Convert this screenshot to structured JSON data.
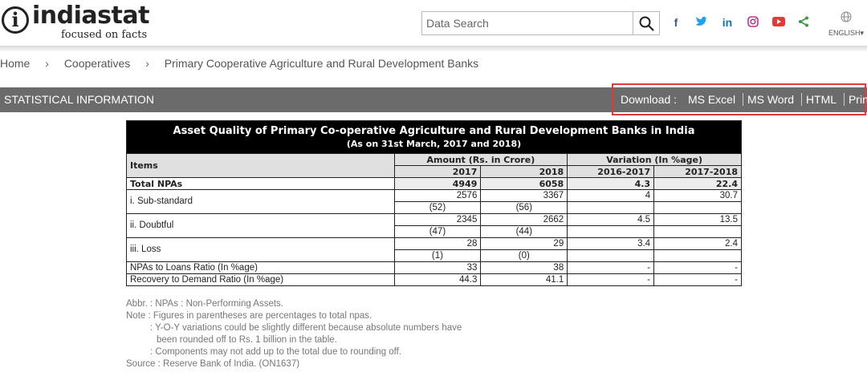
{
  "header": {
    "logo_mark": "i",
    "logo_name": "indiastat",
    "logo_tagline": "focused on facts",
    "search_placeholder": "Data Search",
    "social": [
      {
        "name": "facebook-icon",
        "glyph": "f",
        "color": "#3b5998"
      },
      {
        "name": "twitter-icon",
        "glyph": "🐦",
        "color": "#1da1f2"
      },
      {
        "name": "linkedin-icon",
        "glyph": "in",
        "color": "#0e76a8"
      },
      {
        "name": "instagram-icon",
        "glyph": "◎",
        "color": "#c13584"
      },
      {
        "name": "youtube-icon",
        "glyph": "▶",
        "color": "#e53935"
      },
      {
        "name": "share-icon",
        "glyph": "<",
        "color": "#3c9a3c"
      }
    ],
    "language_label": "ENGLISH▾"
  },
  "breadcrumb": [
    "Home",
    "Cooperatives",
    "Primary Cooperative Agriculture and Rural Development Banks"
  ],
  "infobar": {
    "title": "STATISTICAL INFORMATION",
    "download_label": "Download :",
    "links": [
      "MS Excel",
      "MS Word",
      "HTML",
      "Print"
    ]
  },
  "table": {
    "title": "Asset Quality of Primary Co-operative Agriculture and Rural Development Banks in India",
    "subtitle": "(As on 31st March, 2017 and 2018)",
    "col_items": "Items",
    "col_amount": "Amount (Rs. in Crore)",
    "col_variation": "Variation (In %age)",
    "sub_2017": "2017",
    "sub_2018": "2018",
    "sub_1617": "2016-2017",
    "sub_1718": "2017-2018",
    "total": {
      "label": "Total NPAs",
      "a2017": "4949",
      "a2018": "6058",
      "v1617": "4.3",
      "v1718": "22.4"
    },
    "sub_standard": {
      "label": "i. Sub-standard",
      "a2017": "2576",
      "a2018": "3367",
      "v1617": "4",
      "v1718": "30.7",
      "p2017": "(52)",
      "p2018": "(56)"
    },
    "doubtful": {
      "label": "ii. Doubtful",
      "a2017": "2345",
      "a2018": "2662",
      "v1617": "4.5",
      "v1718": "13.5",
      "p2017": "(47)",
      "p2018": "(44)"
    },
    "loss": {
      "label": "iii. Loss",
      "a2017": "28",
      "a2018": "29",
      "v1617": "3.4",
      "v1718": "2.4",
      "p2017": "(1)",
      "p2018": "(0)"
    },
    "npa_ratio": {
      "label": "NPAs to Loans Ratio (In %age)",
      "a2017": "33",
      "a2018": "38",
      "v1617": "-",
      "v1718": "-"
    },
    "recovery_ratio": {
      "label": "Recovery to Demand Ratio (In %age)",
      "a2017": "44.3",
      "a2018": "41.1",
      "v1617": "-",
      "v1718": "-"
    }
  },
  "notes": {
    "abbr": "Abbr. : NPAs : Non-Performing Assets.",
    "note1": "Note : Figures in parentheses are percentages to total npas.",
    "note2": ": Y-O-Y variations could be slightly different because absolute numbers have",
    "note2b": "been rounded off to Rs. 1 billion in the table.",
    "note3": ": Components may not add up to the total due to rounding off.",
    "source": "Source : Reserve Bank of India. (ON1637)"
  }
}
